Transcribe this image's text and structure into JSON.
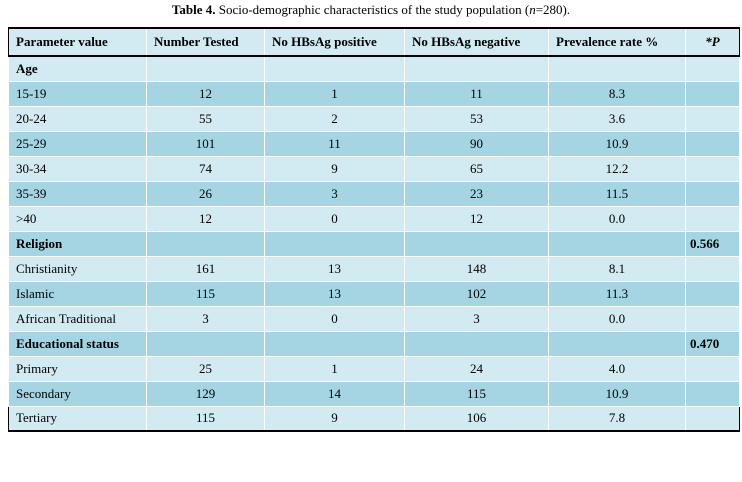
{
  "caption": {
    "label": "Table 4.",
    "text_before": " Socio-demographic characteristics of the study population (",
    "n_symbol": "n",
    "text_after": "=280)."
  },
  "table": {
    "headers": [
      "Parameter value",
      "Number Tested",
      "No HBsAg positive",
      "No HBsAg negative",
      "Prevalence rate %",
      "*P"
    ],
    "rows": [
      {
        "type": "section",
        "label": "Age",
        "p": ""
      },
      {
        "type": "data",
        "cells": [
          "15-19",
          "12",
          "1",
          "11",
          "8.3",
          ""
        ]
      },
      {
        "type": "data",
        "cells": [
          "20-24",
          "55",
          "2",
          "53",
          "3.6",
          ""
        ]
      },
      {
        "type": "data",
        "cells": [
          "25-29",
          "101",
          "11",
          "90",
          "10.9",
          ""
        ]
      },
      {
        "type": "data",
        "cells": [
          "30-34",
          "74",
          "9",
          "65",
          "12.2",
          ""
        ]
      },
      {
        "type": "data",
        "cells": [
          "35-39",
          "26",
          "3",
          "23",
          "11.5",
          ""
        ]
      },
      {
        "type": "data",
        "cells": [
          ">40",
          "12",
          "0",
          "12",
          "0.0",
          ""
        ]
      },
      {
        "type": "section",
        "label": "Religion",
        "p": "0.566"
      },
      {
        "type": "data",
        "cells": [
          "Christianity",
          "161",
          "13",
          "148",
          "8.1",
          ""
        ]
      },
      {
        "type": "data",
        "cells": [
          "Islamic",
          "115",
          "13",
          "102",
          "11.3",
          ""
        ]
      },
      {
        "type": "data",
        "cells": [
          "African Traditional",
          "3",
          "0",
          "3",
          "0.0",
          ""
        ]
      },
      {
        "type": "section",
        "label": "Educational status",
        "p": "0.470"
      },
      {
        "type": "data",
        "cells": [
          "Primary",
          "25",
          "1",
          "24",
          "4.0",
          ""
        ]
      },
      {
        "type": "data",
        "cells": [
          "Secondary",
          "129",
          "14",
          "115",
          "10.9",
          ""
        ]
      },
      {
        "type": "data",
        "cells": [
          "Tertiary",
          "115",
          "9",
          "106",
          "7.8",
          ""
        ]
      }
    ]
  },
  "colors": {
    "row_light": "#d2eaf1",
    "row_dark": "#a5d5e2"
  }
}
